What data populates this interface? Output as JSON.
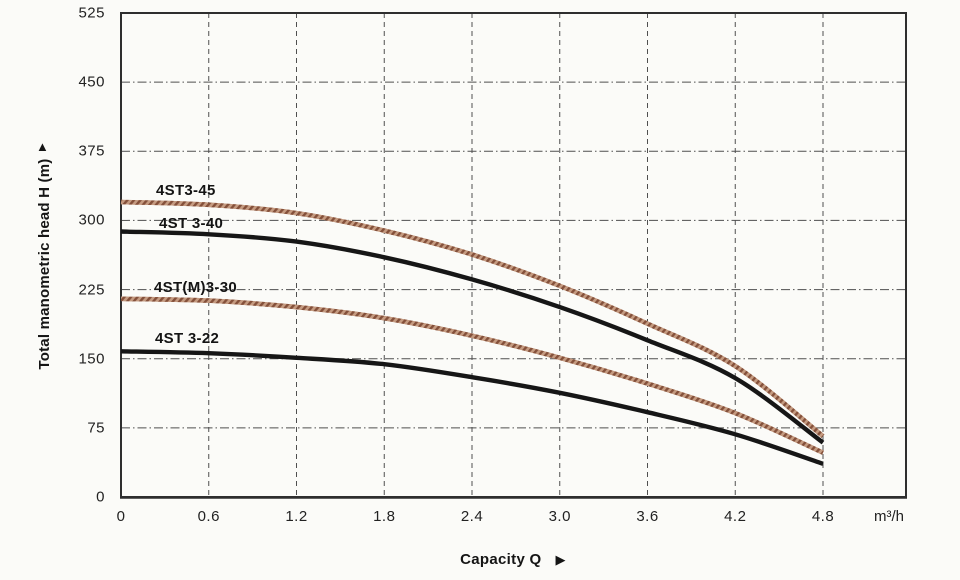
{
  "chart_data": {
    "type": "line",
    "title": "",
    "xlabel": "Capacity Q",
    "ylabel": "Total manometric head H (m)",
    "x_unit": "m³/h",
    "xlim": [
      0,
      5.37
    ],
    "ylim": [
      0,
      525
    ],
    "grid": true,
    "x_ticks": [
      {
        "label": "0",
        "value": 0
      },
      {
        "label": "0.6",
        "value": 0.6
      },
      {
        "label": "1.2",
        "value": 1.2
      },
      {
        "label": "1.8",
        "value": 1.8
      },
      {
        "label": "2.4",
        "value": 2.4
      },
      {
        "label": "3.0",
        "value": 3.0
      },
      {
        "label": "3.6",
        "value": 3.6
      },
      {
        "label": "4.2",
        "value": 4.2
      },
      {
        "label": "4.8",
        "value": 4.8
      }
    ],
    "y_ticks": [
      {
        "label": "0",
        "value": 0
      },
      {
        "label": "75",
        "value": 75
      },
      {
        "label": "150",
        "value": 150
      },
      {
        "label": "225",
        "value": 225
      },
      {
        "label": "300",
        "value": 300
      },
      {
        "label": "375",
        "value": 375
      },
      {
        "label": "450",
        "value": 450
      },
      {
        "label": "525",
        "value": 525
      }
    ],
    "series": [
      {
        "name": "4ST3-45",
        "style": "hatched-red",
        "points": [
          [
            0,
            320
          ],
          [
            0.6,
            317
          ],
          [
            1.2,
            308
          ],
          [
            1.8,
            289
          ],
          [
            2.4,
            263
          ],
          [
            3.0,
            229
          ],
          [
            3.6,
            188
          ],
          [
            4.2,
            142
          ],
          [
            4.8,
            66
          ]
        ]
      },
      {
        "name": "4ST 3-40",
        "style": "solid-black",
        "points": [
          [
            0,
            288
          ],
          [
            0.6,
            285
          ],
          [
            1.2,
            277
          ],
          [
            1.8,
            260
          ],
          [
            2.4,
            236
          ],
          [
            3.0,
            206
          ],
          [
            3.6,
            170
          ],
          [
            4.2,
            129
          ],
          [
            4.8,
            59
          ]
        ]
      },
      {
        "name": "4ST(M)3-30",
        "style": "hatched-red",
        "points": [
          [
            0,
            215
          ],
          [
            0.6,
            213
          ],
          [
            1.2,
            206
          ],
          [
            1.8,
            194
          ],
          [
            2.4,
            175
          ],
          [
            3.0,
            151
          ],
          [
            3.6,
            123
          ],
          [
            4.2,
            91
          ],
          [
            4.8,
            48
          ]
        ]
      },
      {
        "name": "4ST 3-22",
        "style": "solid-black",
        "points": [
          [
            0,
            158
          ],
          [
            0.6,
            156
          ],
          [
            1.2,
            151
          ],
          [
            1.8,
            144
          ],
          [
            2.4,
            130
          ],
          [
            3.0,
            113
          ],
          [
            3.6,
            92
          ],
          [
            4.2,
            68
          ],
          [
            4.8,
            36
          ]
        ]
      }
    ]
  },
  "glyphs": {
    "up_arrow": "▲",
    "right_arrow": "▶"
  },
  "colors": {
    "curve_black": "#161616",
    "hatch_dark": "#84503a",
    "hatch_light": "#c59b81",
    "grid": "#4f4f4f",
    "border": "#2e2e2e",
    "background": "#fbfbf8",
    "text": "#1c1c1c"
  }
}
